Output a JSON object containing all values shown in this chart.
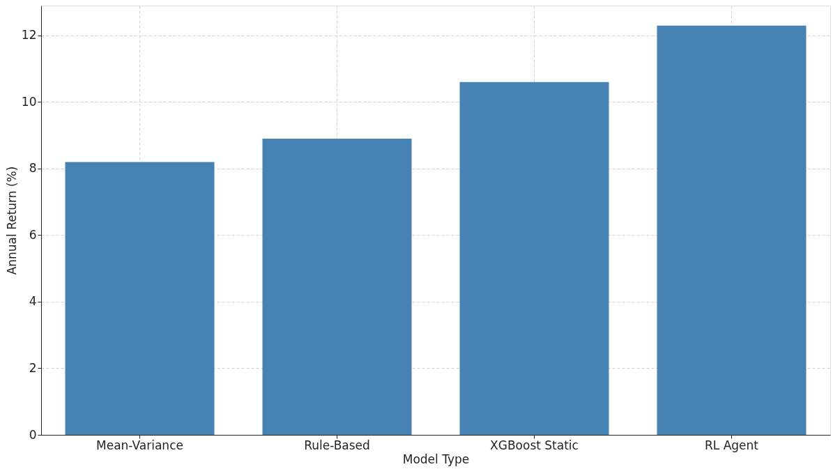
{
  "chart_data": {
    "type": "bar",
    "xlabel": "Model Type",
    "ylabel": "Annual Return (%)",
    "categories": [
      "Mean-Variance",
      "Rule-Based",
      "XGBoost Static",
      "RL Agent"
    ],
    "values": [
      8.2,
      8.9,
      10.6,
      12.3
    ],
    "color": "#4682b4",
    "ylim": [
      0,
      12.9
    ],
    "yticks": [
      0,
      2,
      4,
      6,
      8,
      10,
      12
    ],
    "grid": true
  }
}
